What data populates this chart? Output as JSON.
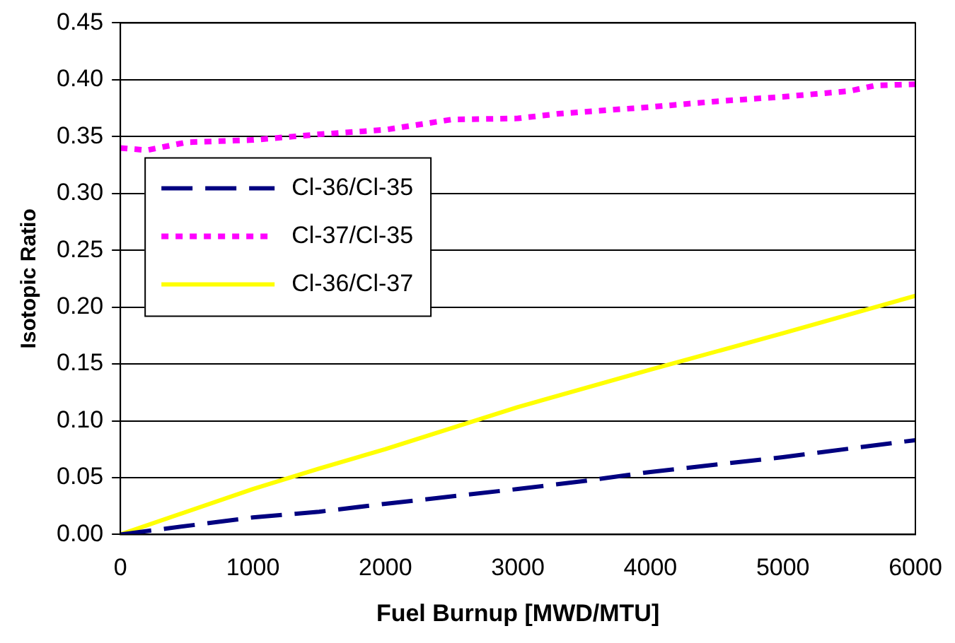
{
  "chart_data": {
    "type": "line",
    "xlabel": "Fuel Burnup [MWD/MTU]",
    "ylabel": "Isotopic Ratio",
    "xlim": [
      0,
      6000
    ],
    "xticks": [
      0,
      1000,
      2000,
      3000,
      4000,
      5000,
      6000
    ],
    "ylim": [
      0,
      0.45
    ],
    "yticks": [
      {
        "value": 0,
        "label": "0.00"
      },
      {
        "value": 0.05,
        "label": "0.05"
      },
      {
        "value": 0.1,
        "label": "0.10"
      },
      {
        "value": 0.15,
        "label": "0.15"
      },
      {
        "value": 0.2,
        "label": "0.20"
      },
      {
        "value": 0.25,
        "label": "0.25"
      },
      {
        "value": 0.3,
        "label": "0.30"
      },
      {
        "value": 0.35,
        "label": "0.35"
      },
      {
        "value": 0.4,
        "label": "0.40"
      },
      {
        "value": 0.45,
        "label": "0.45"
      }
    ],
    "grid": "y",
    "legend": "center left",
    "marker": "none",
    "series": [
      {
        "name": "Cl-36/Cl-35",
        "color": "#000080",
        "line_style": "dashed",
        "x": [
          0,
          1000,
          1500,
          2000,
          3000,
          3500,
          4000,
          5000,
          6000
        ],
        "values": [
          0,
          0.015,
          0.02,
          0.027,
          0.04,
          0.047,
          0.055,
          0.068,
          0.083
        ]
      },
      {
        "name": "Cl-37/Cl-35",
        "color": "#ff00ff",
        "line_style": "dotted",
        "x": [
          0,
          200,
          500,
          1000,
          1500,
          2000,
          2500,
          3000,
          3300,
          4000,
          4500,
          5000,
          5500,
          5700,
          6000
        ],
        "values": [
          0.34,
          0.338,
          0.345,
          0.347,
          0.352,
          0.356,
          0.365,
          0.366,
          0.37,
          0.376,
          0.381,
          0.385,
          0.39,
          0.395,
          0.396
        ]
      },
      {
        "name": "Cl-36/Cl-37",
        "color": "#ffff00",
        "line_style": "solid",
        "x": [
          0,
          1000,
          1500,
          2000,
          3000,
          4000,
          5000,
          6000
        ],
        "values": [
          0,
          0.04,
          0.058,
          0.075,
          0.112,
          0.145,
          0.177,
          0.21
        ]
      }
    ]
  }
}
